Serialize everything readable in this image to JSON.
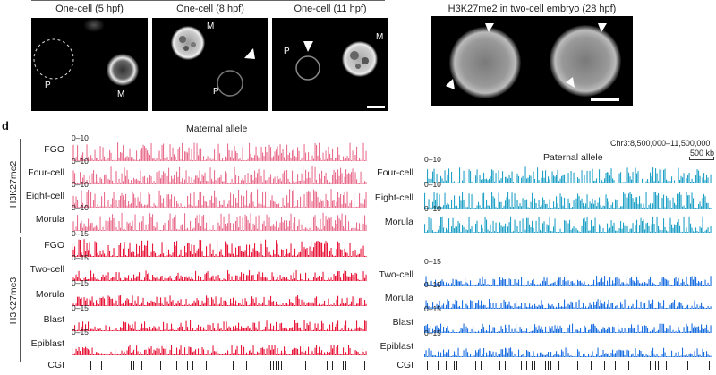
{
  "panel_letter": "d",
  "microscopy": {
    "panels": [
      {
        "title": "One-cell (5 hpf)",
        "labels": [
          "P",
          "M"
        ]
      },
      {
        "title": "One-cell (8 hpf)",
        "labels": [
          "M",
          "P"
        ]
      },
      {
        "title": "One-cell (11 hpf)",
        "labels": [
          "P",
          "M"
        ]
      },
      {
        "title": "H3K27me2 in two-cell embryo (28 hpf)",
        "labels": []
      }
    ]
  },
  "genome_browser": {
    "maternal_title": "Maternal allele",
    "paternal_title": "Paternal allele",
    "region": "Chr3:8,500,000–11,500,000",
    "scale_bar_label": "500 kb",
    "groups": [
      {
        "name": "H3K27me2",
        "color": "#e8708e"
      },
      {
        "name": "H3K27me3",
        "color": "#e8173a"
      }
    ],
    "paternal_colors": {
      "H3K27me2": "#23a2c8",
      "H3K27me3": "#1c6fe0"
    },
    "maternal_tracks": [
      {
        "label": "FGO",
        "scale": "0–10",
        "group": "H3K27me2"
      },
      {
        "label": "Four-cell",
        "scale": "0–10",
        "group": "H3K27me2"
      },
      {
        "label": "Eight-cell",
        "scale": "0–10",
        "group": "H3K27me2"
      },
      {
        "label": "Morula",
        "scale": "0–10",
        "group": "H3K27me2"
      },
      {
        "label": "FGO",
        "scale": "0–15",
        "group": "H3K27me3"
      },
      {
        "label": "Two-cell",
        "scale": "0–15",
        "group": "H3K27me3"
      },
      {
        "label": "Morula",
        "scale": "0–15",
        "group": "H3K27me3"
      },
      {
        "label": "Blast",
        "scale": "0–15",
        "group": "H3K27me3"
      },
      {
        "label": "Epiblast",
        "scale": "0–15",
        "group": "H3K27me3"
      }
    ],
    "paternal_tracks": [
      {
        "label": "Four-cell",
        "scale": "0–10",
        "group": "H3K27me2"
      },
      {
        "label": "Eight-cell",
        "scale": "0–10",
        "group": "H3K27me2"
      },
      {
        "label": "Morula",
        "scale": "0–10",
        "group": "H3K27me2"
      },
      {
        "label": "Two-cell",
        "scale": "0–15",
        "group": "H3K27me3"
      },
      {
        "label": "Morula",
        "scale": "0–15",
        "group": "H3K27me3"
      },
      {
        "label": "Blast",
        "scale": "0–15",
        "group": "H3K27me3"
      },
      {
        "label": "Epiblast",
        "scale": "0–15",
        "group": "H3K27me3"
      }
    ],
    "cgi_label": "CGI"
  }
}
